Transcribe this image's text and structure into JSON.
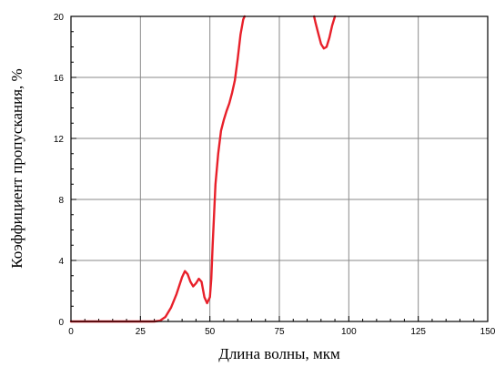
{
  "chart_data": {
    "type": "line",
    "title": "",
    "xlabel": "Длина волны, мкм",
    "ylabel": "Коэффициент пропускания, %",
    "xlim": [
      0,
      150
    ],
    "ylim": [
      0,
      20
    ],
    "xticks": [
      0,
      25,
      50,
      75,
      100,
      125,
      150
    ],
    "yticks": [
      0,
      4,
      8,
      12,
      16,
      20
    ],
    "x_tick_labels": [
      "0",
      "25",
      "50",
      "75",
      "100",
      "125",
      "150"
    ],
    "y_tick_labels": [
      "0",
      "4",
      "8",
      "12",
      "16",
      "20"
    ],
    "grid": true,
    "series": [
      {
        "color": "#e8202a",
        "x": [
          0,
          25,
          30,
          32,
          34,
          36,
          38,
          40,
          41,
          42,
          43,
          44,
          45,
          46,
          47,
          48,
          49,
          50,
          50.5,
          51,
          52,
          53,
          54,
          55,
          56,
          57,
          58,
          59,
          60,
          61,
          62,
          62.5
        ],
        "y": [
          0,
          0,
          0,
          0.05,
          0.3,
          0.9,
          1.8,
          2.9,
          3.3,
          3.1,
          2.6,
          2.3,
          2.5,
          2.8,
          2.6,
          1.6,
          1.2,
          1.6,
          2.8,
          5.0,
          9.0,
          11.0,
          12.5,
          13.2,
          13.8,
          14.3,
          15.0,
          15.8,
          17.2,
          18.8,
          19.8,
          20
        ]
      },
      {
        "color": "#e8202a",
        "x": [
          87.5,
          88,
          89,
          90,
          91,
          92,
          93,
          94,
          95
        ],
        "y": [
          20,
          19.6,
          18.9,
          18.2,
          17.9,
          18.0,
          18.6,
          19.4,
          20
        ]
      }
    ]
  }
}
